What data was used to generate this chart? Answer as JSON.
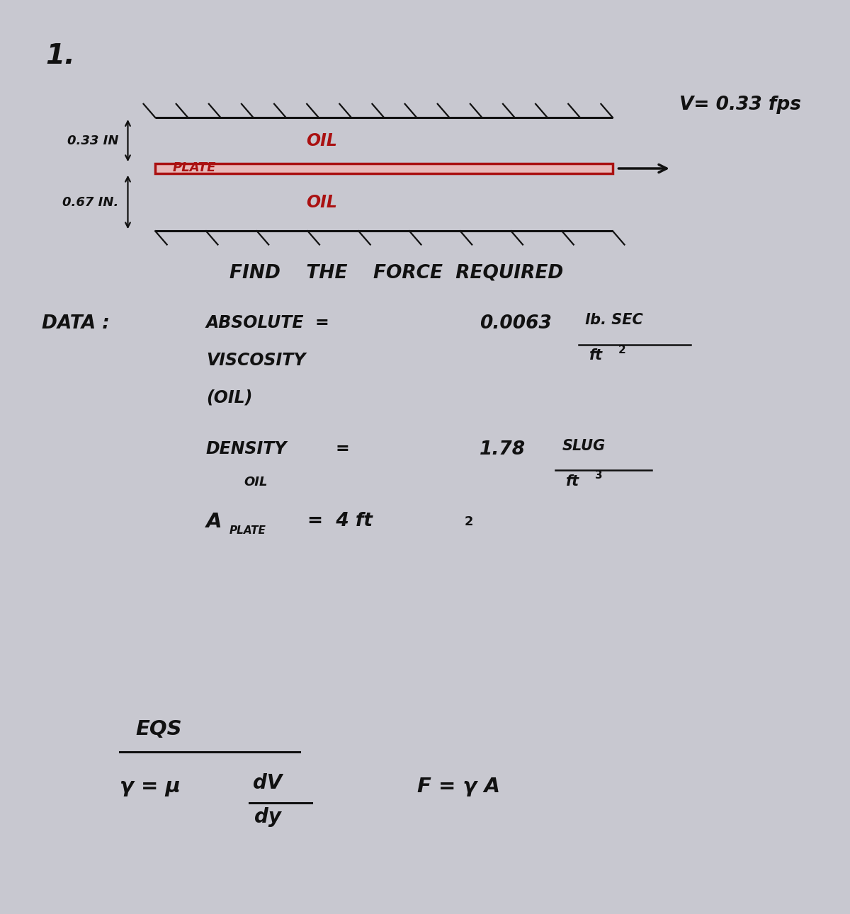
{
  "fig_w": 12.0,
  "fig_h": 12.91,
  "dpi": 100,
  "bg_color": "#c8c8d0",
  "paper_color": "#dcdce4",
  "problem_number": "1.",
  "velocity_label": "V= 0.33 fps",
  "top_gap_label": "0.33 IN",
  "bot_gap_label": "0.67 IN.",
  "oil_top_label": "OIL",
  "oil_bot_label": "OIL",
  "plate_label": "PLATE",
  "find_text": "FIND    THE    FORCE  REQUIRED",
  "data_label": "DATA :",
  "abs_visc_line1": "ABSOLUTE  =",
  "abs_visc_line2": "VISCOSITY",
  "abs_visc_line3": "(OIL)",
  "abs_visc_value": "0.0063",
  "abs_visc_units_top": "lb. SEC",
  "abs_visc_units_bot": "ft",
  "abs_visc_exp": "2",
  "density_label": "DENSITY",
  "density_sub": "OIL",
  "density_eq": "=",
  "density_value": "1.78",
  "density_units_top": "SLUG",
  "density_units_bot": "ft",
  "density_exp": "3",
  "area_label": "A",
  "area_sub": "PLATE",
  "area_value": "=  4 ft",
  "area_exp": "2",
  "eqs_label": "EQS",
  "eq1_gamma": "γ = μ",
  "eq1_frac_top": "dV",
  "eq1_frac_bot": "dy",
  "eq2": "F = γ A",
  "plate_edge_color": "#aa1111",
  "plate_fill_color": "#e8b8b8",
  "red_color": "#aa1111",
  "text_color": "#111111",
  "dim_color": "#111111"
}
